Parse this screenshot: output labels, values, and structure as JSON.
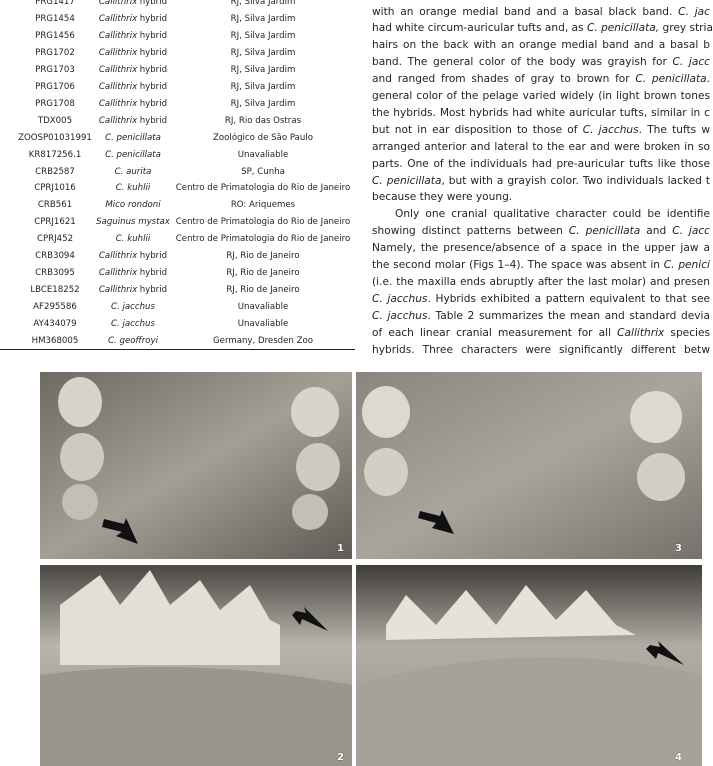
{
  "table": {
    "rows": [
      {
        "id": "PRG1417",
        "taxon": "Callithrix",
        "qualifier": "hybrid",
        "locality": "RJ, Silva Jardim"
      },
      {
        "id": "PRG1454",
        "taxon": "Callithrix",
        "qualifier": "hybrid",
        "locality": "RJ, Silva Jardim"
      },
      {
        "id": "PRG1456",
        "taxon": "Callithrix",
        "qualifier": "hybrid",
        "locality": "RJ, Silva Jardim"
      },
      {
        "id": "PRG1702",
        "taxon": "Callithrix",
        "qualifier": "hybrid",
        "locality": "RJ, Silva Jardim"
      },
      {
        "id": "PRG1703",
        "taxon": "Callithrix",
        "qualifier": "hybrid",
        "locality": "RJ, Silva Jardim"
      },
      {
        "id": "PRG1706",
        "taxon": "Callithrix",
        "qualifier": "hybrid",
        "locality": "RJ, Silva Jardim"
      },
      {
        "id": "PRG1708",
        "taxon": "Callithrix",
        "qualifier": "hybrid",
        "locality": "RJ, Silva Jardim"
      },
      {
        "id": "TDX005",
        "taxon": "Callithrix",
        "qualifier": "hybrid",
        "locality": "RJ, Rio das Ostras"
      },
      {
        "id": "ZOOSP01031991",
        "taxon": "C. penicillata",
        "locality": "Zoológico de São Paulo"
      },
      {
        "id": "KR817256.1",
        "taxon": "C. penicillata",
        "locality": "Unavaliable"
      },
      {
        "id": "CRB2587",
        "taxon": "C. aurita",
        "locality": "SP, Cunha"
      },
      {
        "id": "CPRJ1016",
        "taxon": "C. kuhlii",
        "locality": "Centro de Primatologia do Rio de Janeiro"
      },
      {
        "id": "CRB561",
        "taxon": "Mico rondoni",
        "locality": "RO: Ariquemes"
      },
      {
        "id": "CPRJ1621",
        "taxon": "Saguinus mystax",
        "locality": "Centro de Primatologia do Rio de Janeiro"
      },
      {
        "id": "CPRJ452",
        "taxon": "C. kuhlii",
        "locality": "Centro de Primatologia do Rio de Janeiro"
      },
      {
        "id": "CRB3094",
        "taxon": "Callithrix",
        "qualifier": "hybrid",
        "locality": "RJ, Rio de Janeiro"
      },
      {
        "id": "CRB3095",
        "taxon": "Callithrix",
        "qualifier": "hybrid",
        "locality": "RJ, Rio de Janeiro"
      },
      {
        "id": "LBCE18252",
        "taxon": "Callithrix",
        "qualifier": "hybrid",
        "locality": "RJ, Rio de Janeiro"
      },
      {
        "id": "AF295586",
        "taxon": "C. jacchus",
        "locality": "Unavaliable"
      },
      {
        "id": "AY434079",
        "taxon": "C. jacchus",
        "locality": "Unavaliable"
      },
      {
        "id": "HM368005",
        "taxon": "C. geoffroyi",
        "locality": "Germany, Dresden Zoo"
      }
    ]
  },
  "body_text": {
    "lines": [
      [
        {
          "text": "with an orange medial band and a basal black band. "
        },
        {
          "text": "C. jac",
          "italic": true
        }
      ],
      [
        {
          "text": "had white circum-auricular tufts and, as "
        },
        {
          "text": "C. penicillata,",
          "italic": true
        },
        {
          "text": " grey stria"
        }
      ],
      [
        {
          "text": "hairs on the back with an orange medial band and a basal b"
        }
      ],
      [
        {
          "text": "band. The general color of the body was grayish for "
        },
        {
          "text": "C. jacc",
          "italic": true
        }
      ],
      [
        {
          "text": "and ranged from shades of gray to brown for "
        },
        {
          "text": "C. penicillata",
          "italic": true
        },
        {
          "text": ". "
        }
      ],
      [
        {
          "text": "general color of the pelage varied widely (in light brown tones"
        }
      ],
      [
        {
          "text": "the hybrids. Most hybrids had white auricular tufts, similar in c"
        }
      ],
      [
        {
          "text": "but not in ear disposition to those of "
        },
        {
          "text": "C. jacchus",
          "italic": true
        },
        {
          "text": ". The tufts w"
        }
      ],
      [
        {
          "text": "arranged anterior and lateral to the ear and were broken in so"
        }
      ],
      [
        {
          "text": "parts. One of the individuals had pre-auricular tufts like those"
        }
      ],
      [
        {
          "text": "C. penicillata",
          "italic": true
        },
        {
          "text": ", but with a grayish color. Two individuals lacked t"
        }
      ],
      [
        {
          "text": "because they were young."
        }
      ],
      [
        {
          "text": "Only one cranial qualitative character could be identifie"
        }
      ],
      [
        {
          "text": "showing distinct patterns between "
        },
        {
          "text": "C. penicillata",
          "italic": true
        },
        {
          "text": " and "
        },
        {
          "text": "C. jacc",
          "italic": true
        }
      ],
      [
        {
          "text": "Namely, the presence/absence of a space in the upper jaw a"
        }
      ],
      [
        {
          "text": "the second molar (Figs 1–4). The space was absent in "
        },
        {
          "text": "C. penici",
          "italic": true
        }
      ],
      [
        {
          "text": "(i.e. the maxilla ends abruptly after the last molar) and presen"
        }
      ],
      [
        {
          "text": "C. jacchus",
          "italic": true
        },
        {
          "text": ". Hybrids exhibited a pattern equivalent to that see"
        }
      ],
      [
        {
          "text": "C. jacchus",
          "italic": true
        },
        {
          "text": ". Table 2 summarizes the mean and standard devia"
        }
      ],
      [
        {
          "text": "of each linear cranial measurement for all "
        },
        {
          "text": "Callithrix",
          "italic": true
        },
        {
          "text": " species "
        }
      ],
      [
        {
          "text": "hybrids. Three characters were significantly different betw"
        }
      ]
    ]
  },
  "figures": [
    {
      "label": "1"
    },
    {
      "label": "3"
    },
    {
      "label": "2"
    },
    {
      "label": "4"
    }
  ]
}
